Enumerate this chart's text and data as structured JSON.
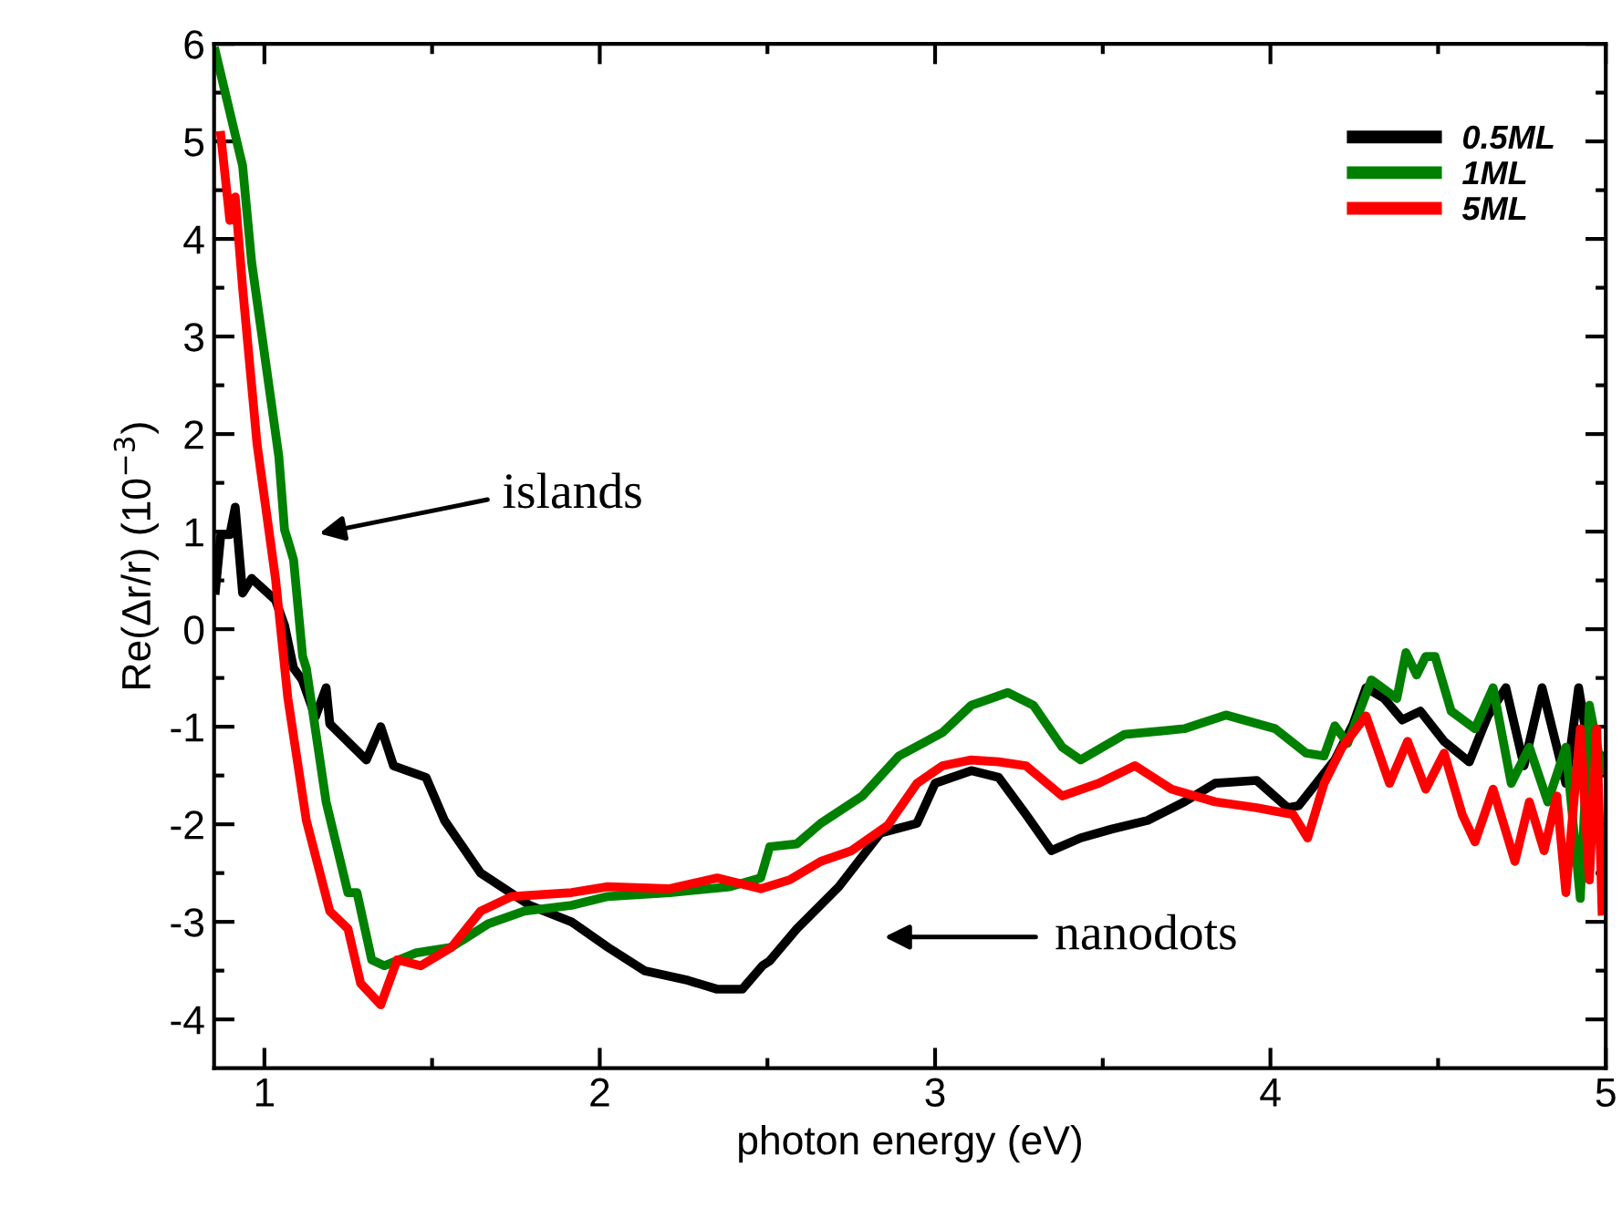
{
  "chart_data": {
    "type": "line",
    "xlabel": "photon energy (eV)",
    "ylabel": "Re(Δr/r) (10$^{−3}$)",
    "xlim": [
      0.85,
      5
    ],
    "ylim": [
      -4.5,
      6
    ],
    "xticks": [
      1,
      2,
      3,
      4,
      5
    ],
    "yticks": [
      -4,
      -3,
      -2,
      -1,
      0,
      1,
      2,
      3,
      4,
      5,
      6
    ],
    "legend": "top right",
    "grid": false,
    "line_style": "solid",
    "marker": "none",
    "annotations": [
      "islands",
      "nanodots"
    ],
    "series": [
      {
        "name": "0.5ML",
        "color": "#000000",
        "x": [
          0.854,
          0.87,
          0.897,
          0.913,
          0.935,
          0.962,
          1.033,
          1.06,
          1.087,
          1.113,
          1.152,
          1.184,
          1.195,
          1.304,
          1.347,
          1.385,
          1.482,
          1.537,
          1.645,
          1.791,
          1.916,
          2.024,
          2.133,
          2.263,
          2.35,
          2.425,
          2.485,
          2.507,
          2.588,
          2.713,
          2.837,
          2.946,
          3.0,
          3.108,
          3.19,
          3.271,
          3.347,
          3.434,
          3.526,
          3.634,
          3.743,
          3.835,
          3.959,
          4.051,
          4.084,
          4.192,
          4.247,
          4.285,
          4.339,
          4.393,
          4.447,
          4.518,
          4.593,
          4.648,
          4.702,
          4.756,
          4.81,
          4.881,
          4.919,
          4.951,
          4.989
        ],
        "values": [
          0.4,
          0.97,
          0.97,
          1.25,
          0.37,
          0.52,
          0.3,
          0.04,
          -0.4,
          -0.52,
          -0.9,
          -0.6,
          -0.97,
          -1.34,
          -1.0,
          -1.4,
          -1.52,
          -1.96,
          -2.5,
          -2.83,
          -3.0,
          -3.26,
          -3.5,
          -3.6,
          -3.69,
          -3.69,
          -3.45,
          -3.4,
          -3.07,
          -2.64,
          -2.09,
          -1.99,
          -1.58,
          -1.45,
          -1.52,
          -1.9,
          -2.27,
          -2.14,
          -2.05,
          -1.96,
          -1.77,
          -1.58,
          -1.55,
          -1.83,
          -1.81,
          -1.34,
          -0.97,
          -0.6,
          -0.71,
          -0.93,
          -0.84,
          -1.15,
          -1.36,
          -0.89,
          -0.6,
          -1.4,
          -0.6,
          -1.58,
          -0.6,
          -1.27,
          -1.3
        ]
      },
      {
        "name": "1ML",
        "color": "#008000",
        "x": [
          0.854,
          0.935,
          0.962,
          1.043,
          1.06,
          1.076,
          1.087,
          1.114,
          1.125,
          1.184,
          1.249,
          1.276,
          1.32,
          1.358,
          1.45,
          1.558,
          1.667,
          1.775,
          1.916,
          2.024,
          2.209,
          2.388,
          2.48,
          2.507,
          2.588,
          2.659,
          2.783,
          2.892,
          3.022,
          3.108,
          3.217,
          3.293,
          3.379,
          3.434,
          3.564,
          3.743,
          3.867,
          4.014,
          4.106,
          4.16,
          4.192,
          4.23,
          4.301,
          4.377,
          4.404,
          4.436,
          4.463,
          4.491,
          4.539,
          4.61,
          4.664,
          4.718,
          4.772,
          4.827,
          4.881,
          4.924,
          4.951,
          4.989
        ],
        "values": [
          5.92,
          4.75,
          3.76,
          1.77,
          1.02,
          0.84,
          0.71,
          -0.28,
          -0.4,
          -1.77,
          -2.7,
          -2.7,
          -3.39,
          -3.45,
          -3.32,
          -3.26,
          -3.02,
          -2.89,
          -2.83,
          -2.74,
          -2.7,
          -2.64,
          -2.55,
          -2.23,
          -2.2,
          -1.99,
          -1.71,
          -1.3,
          -1.06,
          -0.78,
          -0.65,
          -0.78,
          -1.21,
          -1.34,
          -1.08,
          -1.02,
          -0.88,
          -1.02,
          -1.27,
          -1.3,
          -0.99,
          -1.17,
          -0.52,
          -0.71,
          -0.24,
          -0.47,
          -0.28,
          -0.28,
          -0.84,
          -1.02,
          -0.6,
          -1.58,
          -1.21,
          -1.77,
          -1.21,
          -2.76,
          -0.78,
          -1.45
        ]
      },
      {
        "name": "5ML",
        "color": "#ff0000",
        "x": [
          0.87,
          0.897,
          0.913,
          0.935,
          0.978,
          1.033,
          1.07,
          1.125,
          1.195,
          1.249,
          1.287,
          1.347,
          1.396,
          1.466,
          1.558,
          1.645,
          1.737,
          1.916,
          2.024,
          2.209,
          2.35,
          2.48,
          2.566,
          2.659,
          2.751,
          2.859,
          2.946,
          3.022,
          3.108,
          3.19,
          3.271,
          3.379,
          3.488,
          3.596,
          3.705,
          3.835,
          3.959,
          4.068,
          4.111,
          4.16,
          4.214,
          4.285,
          4.355,
          4.409,
          4.463,
          4.518,
          4.572,
          4.61,
          4.664,
          4.729,
          4.772,
          4.816,
          4.854,
          4.881,
          4.924,
          4.951,
          4.973,
          4.989
        ],
        "values": [
          5.06,
          4.19,
          4.43,
          3.5,
          1.9,
          0.52,
          -0.71,
          -1.96,
          -2.89,
          -3.07,
          -3.63,
          -3.85,
          -3.39,
          -3.45,
          -3.26,
          -2.89,
          -2.74,
          -2.7,
          -2.64,
          -2.66,
          -2.55,
          -2.66,
          -2.57,
          -2.38,
          -2.27,
          -2.01,
          -1.58,
          -1.4,
          -1.34,
          -1.36,
          -1.4,
          -1.71,
          -1.58,
          -1.4,
          -1.64,
          -1.77,
          -1.83,
          -1.9,
          -2.14,
          -1.58,
          -1.21,
          -0.89,
          -1.58,
          -1.15,
          -1.64,
          -1.27,
          -1.9,
          -2.18,
          -1.64,
          -2.38,
          -1.77,
          -2.27,
          -1.71,
          -2.7,
          -1.02,
          -2.57,
          -1.02,
          -2.89
        ]
      }
    ]
  }
}
